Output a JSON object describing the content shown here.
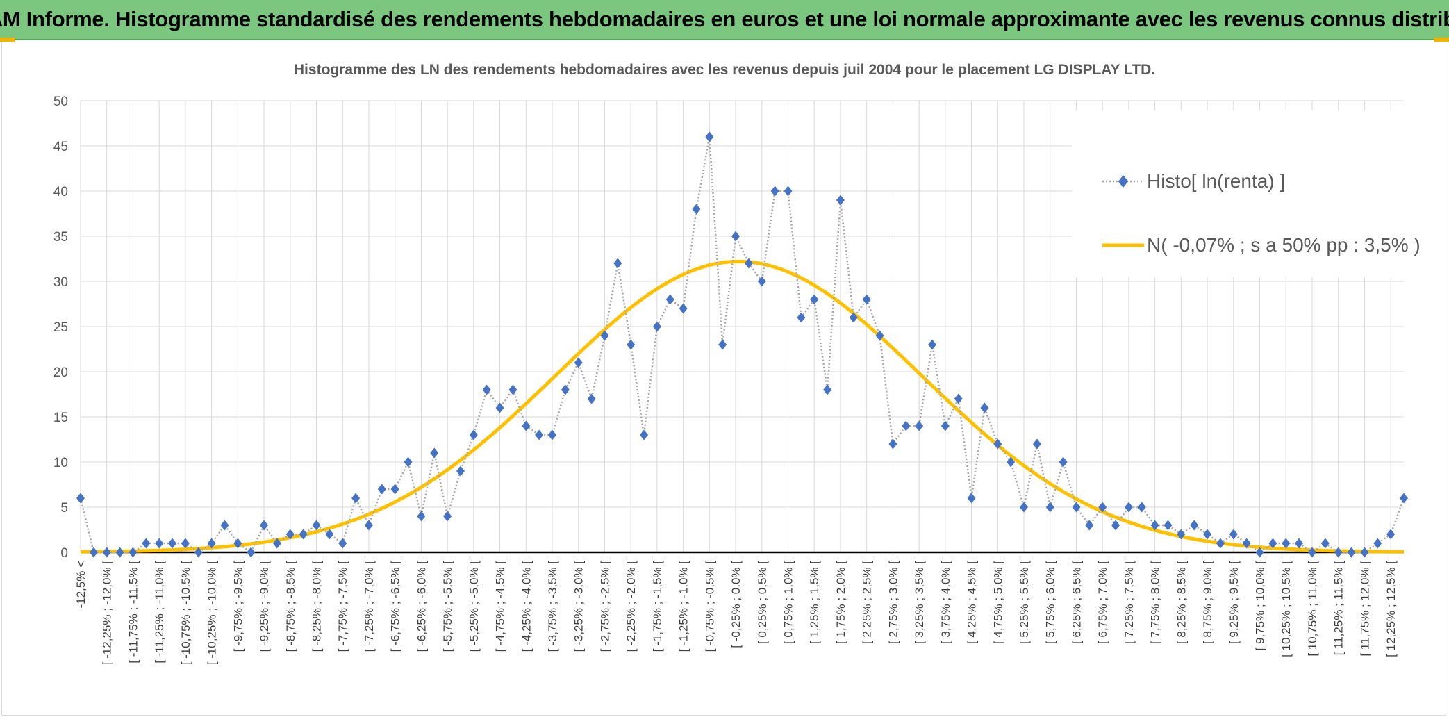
{
  "header": {
    "title": "ADAM Informe. Histogramme standardisé des rendements hebdomadaires en euros et une loi normale approximante avec les revenus connus distribués"
  },
  "colors": {
    "header_bg": "#7cc77f",
    "histogram": "#4472c4",
    "histogram_line": "#a5a5a5",
    "normal_curve": "#ffc000",
    "accent": "#f2b400"
  },
  "chart_data": {
    "type": "line",
    "title": "Histogramme des LN des rendements hebdomadaires avec les revenus depuis juil 2004 pour le placement LG DISPLAY LTD.",
    "xlabel": "",
    "ylabel": "",
    "ylim": [
      0,
      50
    ],
    "yticks": [
      "0",
      "5",
      "10",
      "15",
      "20",
      "25",
      "30",
      "35",
      "40",
      "45",
      "50"
    ],
    "grid": true,
    "legend_position": "top-right",
    "categories": [
      "-12,5% <",
      "[ -12,5% ; -12,25% [",
      "[ -12,25% ; -12,0% [",
      "[ -12,0% ; -11,75% [",
      "[ -11,75% ; -11,5% [",
      "[ -11,5% ; -11,25% [",
      "[ -11,25% ; -11,0% [",
      "[ -11,0% ; -10,75% [",
      "[ -10,75% ; -10,5% [",
      "[ -10,5% ; -10,25% [",
      "[ -10,25% ; -10,0% [",
      "[ -10,0% ; -9,75% [",
      "[ -9,75% ; -9,5% [",
      "[ -9,5% ; -9,25% [",
      "[ -9,25% ; -9,0% [",
      "[ -9,0% ; -8,75% [",
      "[ -8,75% ; -8,5% [",
      "[ -8,5% ; -8,25% [",
      "[ -8,25% ; -8,0% [",
      "[ -8,0% ; -7,75% [",
      "[ -7,75% ; -7,5% [",
      "[ -7,5% ; -7,25% [",
      "[ -7,25% ; -7,0% [",
      "[ -7,0% ; -6,75% [",
      "[ -6,75% ; -6,5% [",
      "[ -6,5% ; -6,25% [",
      "[ -6,25% ; -6,0% [",
      "[ -6,0% ; -5,75% [",
      "[ -5,75% ; -5,5% [",
      "[ -5,5% ; -5,25% [",
      "[ -5,25% ; -5,0% [",
      "[ -5,0% ; -4,75% [",
      "[ -4,75% ; -4,5% [",
      "[ -4,5% ; -4,25% [",
      "[ -4,25% ; -4,0% [",
      "[ -4,0% ; -3,75% [",
      "[ -3,75% ; -3,5% [",
      "[ -3,5% ; -3,25% [",
      "[ -3,25% ; -3,0% [",
      "[ -3,0% ; -2,75% [",
      "[ -2,75% ; -2,5% [",
      "[ -2,5% ; -2,25% [",
      "[ -2,25% ; -2,0% [",
      "[ -2,0% ; -1,75% [",
      "[ -1,75% ; -1,5% [",
      "[ -1,5% ; -1,25% [",
      "[ -1,25% ; -1,0% [",
      "[ -1,0% ; -0,75% [",
      "[ -0,75% ; -0,5% [",
      "[ -0,5% ; -0,25% [",
      "[ -0,25% ; 0,0% [",
      "[ 0,0% ; 0,25% [",
      "[ 0,25% ; 0,5% [",
      "[ 0,5% ; 0,75% [",
      "[ 0,75% ; 1,0% [",
      "[ 1,0% ; 1,25% [",
      "[ 1,25% ; 1,5% [",
      "[ 1,5% ; 1,75% [",
      "[ 1,75% ; 2,0% [",
      "[ 2,0% ; 2,25% [",
      "[ 2,25% ; 2,5% [",
      "[ 2,5% ; 2,75% [",
      "[ 2,75% ; 3,0% [",
      "[ 3,0% ; 3,25% [",
      "[ 3,25% ; 3,5% [",
      "[ 3,5% ; 3,75% [",
      "[ 3,75% ; 4,0% [",
      "[ 4,0% ; 4,25% [",
      "[ 4,25% ; 4,5% [",
      "[ 4,5% ; 4,75% [",
      "[ 4,75% ; 5,0% [",
      "[ 5,0% ; 5,25% [",
      "[ 5,25% ; 5,5% [",
      "[ 5,5% ; 5,75% [",
      "[ 5,75% ; 6,0% [",
      "[ 6,0% ; 6,25% [",
      "[ 6,25% ; 6,5% [",
      "[ 6,5% ; 6,75% [",
      "[ 6,75% ; 7,0% [",
      "[ 7,0% ; 7,25% [",
      "[ 7,25% ; 7,5% [",
      "[ 7,5% ; 7,75% [",
      "[ 7,75% ; 8,0% [",
      "[ 8,0% ; 8,25% [",
      "[ 8,25% ; 8,5% [",
      "[ 8,5% ; 8,75% [",
      "[ 8,75% ; 9,0% [",
      "[ 9,0% ; 9,25% [",
      "[ 9,25% ; 9,5% [",
      "[ 9,5% ; 9,75% [",
      "[ 9,75% ; 10,0% [",
      "[ 10,0% ; 10,25% [",
      "[ 10,25% ; 10,5% [",
      "[ 10,5% ; 10,75% [",
      "[ 10,75% ; 11,0% [",
      "[ 11,0% ; 11,25% [",
      "[ 11,25% ; 11,5% [",
      "[ 11,5% ; 11,75% [",
      "[ 11,75% ; 12,0% [",
      "[ 12,0% ; 12,25% [",
      "[ 12,25% ; 12,5% [",
      "12,5% >"
    ],
    "series": [
      {
        "name": "Histo[ ln(renta) ]",
        "style": "dotted-line-diamond-markers",
        "values": [
          6,
          0,
          0,
          0,
          0,
          1,
          1,
          1,
          1,
          0,
          1,
          3,
          1,
          0,
          3,
          1,
          2,
          2,
          3,
          2,
          1,
          6,
          3,
          7,
          7,
          10,
          4,
          11,
          4,
          9,
          13,
          18,
          16,
          18,
          14,
          13,
          13,
          18,
          21,
          17,
          24,
          32,
          23,
          13,
          25,
          28,
          27,
          38,
          46,
          23,
          35,
          32,
          30,
          40,
          40,
          26,
          28,
          18,
          39,
          26,
          28,
          24,
          12,
          14,
          14,
          23,
          14,
          17,
          6,
          16,
          12,
          10,
          5,
          12,
          5,
          10,
          5,
          3,
          5,
          3,
          5,
          5,
          3,
          3,
          2,
          3,
          2,
          1,
          2,
          1,
          0,
          1,
          1,
          1,
          0,
          1,
          0,
          0,
          0,
          1,
          2,
          6
        ]
      },
      {
        "name": "N( -0,07% ; s a 50% pp : 3,5% )",
        "style": "smooth-line",
        "mean_pct": -0.07,
        "sd_pct": 3.5,
        "peak": 32.2
      }
    ]
  }
}
